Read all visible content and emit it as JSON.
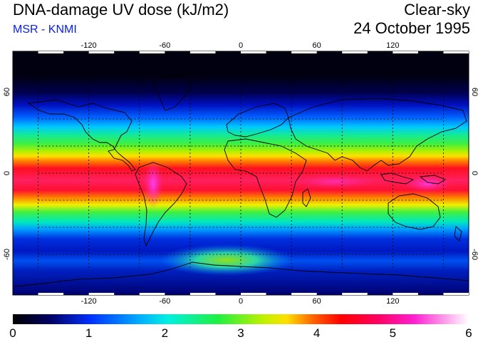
{
  "header": {
    "title": "DNA-damage UV dose (kJ/m2)",
    "source": "MSR - KNMI",
    "condition": "Clear-sky",
    "date": "24 October 1995"
  },
  "colors": {
    "source_text": "#0a20e6"
  },
  "map": {
    "lon_ticks": [
      "-120",
      "-60",
      "0",
      "60",
      "120"
    ],
    "lon_values": [
      -120,
      -60,
      0,
      60,
      120
    ],
    "lat_ticks_left": [
      "60",
      "0",
      "-60"
    ],
    "lat_ticks_right": [
      "60",
      "0",
      "-60"
    ],
    "lat_values": [
      60,
      0,
      -60
    ],
    "lon_range": [
      -180,
      180
    ],
    "lat_range": [
      -90,
      90
    ],
    "grid": "dotted every 20 degrees"
  },
  "colorbar": {
    "ticks": [
      "0",
      "1",
      "2",
      "3",
      "4",
      "5",
      "6"
    ],
    "min": 0,
    "max": 6
  }
}
